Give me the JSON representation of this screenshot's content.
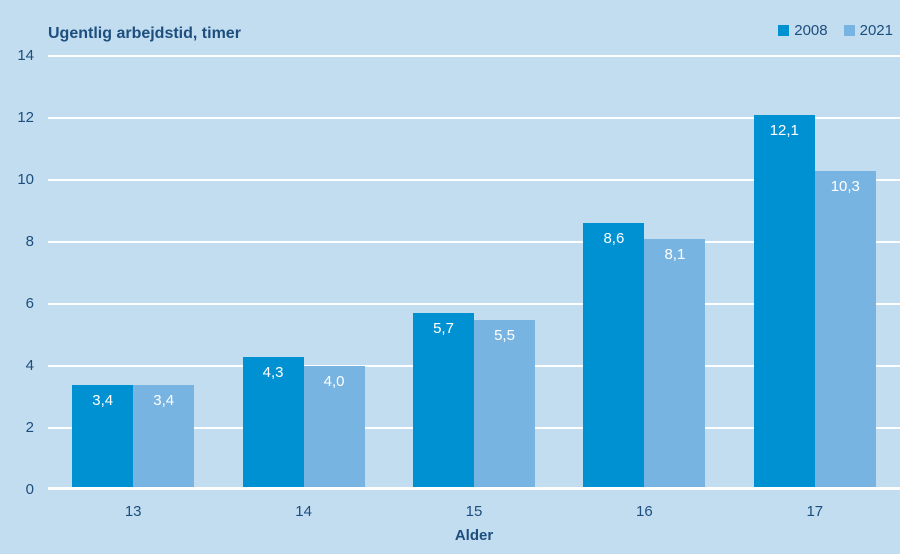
{
  "colors": {
    "background": "#c2ddf0",
    "series_2008": "#0091d3",
    "series_2021": "#78b4e2",
    "text": "#1d4e7e",
    "gridline": "#ffffff",
    "bar_label": "#ffffff"
  },
  "chart_data": {
    "type": "bar",
    "title": "Ugentlig arbejdstid, timer",
    "xlabel": "Alder",
    "ylabel": "Ugentlig arbejdstid, timer",
    "categories": [
      "13",
      "14",
      "15",
      "16",
      "17"
    ],
    "series": [
      {
        "name": "2008",
        "color": "#0091d3",
        "values": [
          3.4,
          4.3,
          5.7,
          8.6,
          12.1
        ],
        "labels": [
          "3,4",
          "4,3",
          "5,7",
          "8,6",
          "12,1"
        ]
      },
      {
        "name": "2021",
        "color": "#78b4e2",
        "values": [
          3.4,
          4.0,
          5.5,
          8.1,
          10.3
        ],
        "labels": [
          "3,4",
          "4,0",
          "5,5",
          "8,1",
          "10,3"
        ]
      }
    ],
    "ylim": [
      0,
      14
    ],
    "ytick_step": 2,
    "yticks": [
      "0",
      "2",
      "4",
      "6",
      "8",
      "10",
      "12",
      "14"
    ],
    "grid": true,
    "legend_position": "top-right"
  }
}
